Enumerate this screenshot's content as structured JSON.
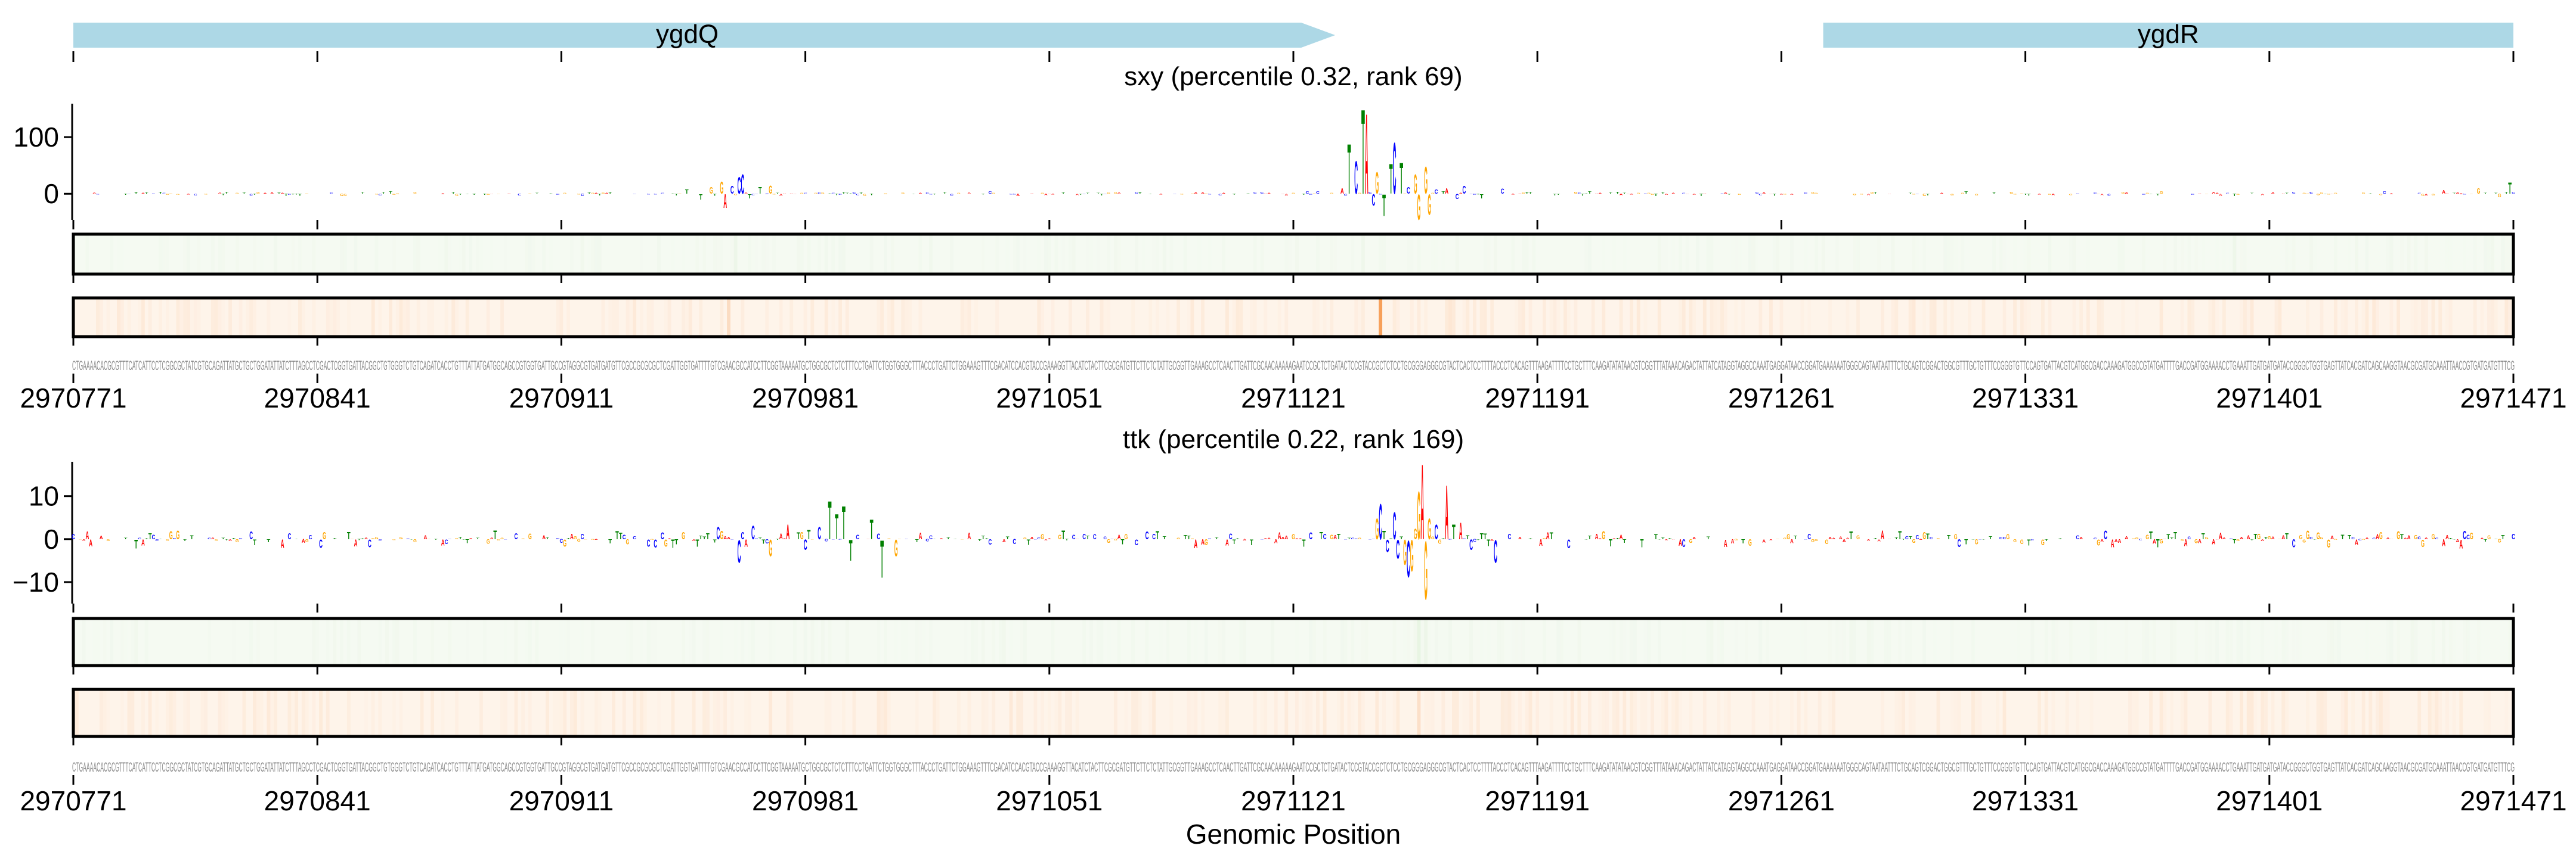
{
  "region": {
    "start": 2970771,
    "end": 2971471
  },
  "xticks": [
    "2970771",
    "2970841",
    "2970911",
    "2970981",
    "2971051",
    "2971121",
    "2971191",
    "2971261",
    "2971331",
    "2971401",
    "2971471"
  ],
  "xlabel": "Genomic Position",
  "genes": [
    {
      "name": "ygdQ",
      "start": 2970771,
      "end": 2971133,
      "strand": "+"
    },
    {
      "name": "ygdR",
      "start": 2971273,
      "end": 2971471,
      "strand": "+"
    }
  ],
  "sequence": "CTGAAAACACGCGTTTCATCATTCCTCGGCGCTATCGTGCAGATTATGCTGCTGGATATTATCTTTAGCCTCGACTCGGTGATTACGGCTGTGGGTCTGTCAGATCACCTGTTTATTATGATGGCAGCCGTGGTGATTGCCGTAGGCGTGATGATGTTCGCCGCGCGCTCGATTGGTGATTTTGTCGAACGCCATCCTTCGGTAAAAATGCTGGCGCTCTCTTTCCTGATTCTGGTGGGCTTTACCCTGATTCTGGAAAGTTTCGACATCCACGTACCGAAAGGTTACATCTACTTCGCGATGTTCTTCTCTATTGCGGTTGAAAGCCTCAACTTGATTCGCAACAAAAAGAATCCGCTCTGATACTCCGTACCGCTCTCCTGCGGGAGGGCGTACTCACTCCTTTTACCCTCACAGTTTAAGATTTTCCTGCTTTCAAGATATATAACGTCGGTTTATAAACAGACTATTATCATAGGTAGGCCAAATGAGGATAACCGGATGAAAAAATGGGCAGTAATAATTTCTGCAGTCGGACTGGCGTTTGCTGTTTCCGGGTGTTCCAGTGATTACGTCATGGCGACCAAAGATGGCCGTATGATTTTGACCGATGGAAAACCTGAAATTGATGATGATACCGGGCTGGTGAGTTATCACGATCAGCAAGGTAACGCGATGCAAATTAACCGTGATGATGTTTCG",
  "colors": {
    "gene": "#add8e6",
    "A": "#ff0000",
    "C": "#0000ff",
    "G": "#ffa500",
    "T": "#008000",
    "heat_green_bg": "#f5faf2",
    "heat_green_hi": "#d6edd0",
    "heat_orange_bg": "#fef4ea",
    "heat_orange_hi": "#f7a05a",
    "sequence": "#8a8a8a"
  },
  "chart_data": [
    {
      "type": "logo",
      "title": "sxy (percentile 0.32, rank 69)",
      "ylim": [
        -46,
        159
      ],
      "yticks": [
        {
          "value": 0,
          "label": "0"
        },
        {
          "value": 100,
          "label": "100"
        }
      ],
      "noise_amplitude": 4,
      "peaks_offset_value": [
        [
          176,
          8
        ],
        [
          180,
          -10
        ],
        [
          183,
          12
        ],
        [
          186,
          22
        ],
        [
          187,
          -25
        ],
        [
          189,
          14
        ],
        [
          191,
          30
        ],
        [
          192,
          35
        ],
        [
          194,
          -8
        ],
        [
          197,
          12
        ],
        [
          200,
          15
        ],
        [
          364,
          10
        ],
        [
          366,
          91
        ],
        [
          368,
          60
        ],
        [
          370,
          154
        ],
        [
          371,
          146
        ],
        [
          373,
          -21
        ],
        [
          374,
          39
        ],
        [
          376,
          -39
        ],
        [
          378,
          54
        ],
        [
          379,
          93
        ],
        [
          381,
          56
        ],
        [
          383,
          12
        ],
        [
          385,
          35
        ],
        [
          386,
          -46
        ],
        [
          388,
          49
        ],
        [
          389,
          -37
        ],
        [
          391,
          8
        ],
        [
          394,
          10
        ],
        [
          397,
          -9
        ],
        [
          399,
          14
        ],
        [
          404,
          -8
        ],
        [
          410,
          9
        ],
        [
          680,
          6
        ],
        [
          690,
          10
        ],
        [
          696,
          -6
        ],
        [
          699,
          20
        ]
      ],
      "green_highlights": [
        [
          190,
          0.25
        ],
        [
          370,
          0.2
        ],
        [
          620,
          0.15
        ]
      ],
      "orange_highlights": [
        [
          375,
          1.0
        ],
        [
          188,
          0.2
        ],
        [
          395,
          0.15
        ]
      ]
    },
    {
      "type": "logo",
      "title": "ttk (percentile 0.22, rank 169)",
      "ylim": [
        -15,
        18
      ],
      "yticks": [
        {
          "value": -10,
          "label": "−10"
        },
        {
          "value": 0,
          "label": "0"
        },
        {
          "value": 10,
          "label": "10"
        }
      ],
      "noise_amplitude": 2.2,
      "peaks_offset_value": [
        [
          185,
          3
        ],
        [
          191,
          -5.5
        ],
        [
          195,
          3.2
        ],
        [
          200,
          -4
        ],
        [
          205,
          3.5
        ],
        [
          210,
          -2.5
        ],
        [
          214,
          3
        ],
        [
          217,
          9.2
        ],
        [
          219,
          6
        ],
        [
          221,
          8
        ],
        [
          223,
          -5
        ],
        [
          229,
          4.7
        ],
        [
          232,
          -9
        ],
        [
          236,
          -4
        ],
        [
          374,
          5
        ],
        [
          375,
          8.5
        ],
        [
          377,
          -3
        ],
        [
          379,
          6.5
        ],
        [
          380,
          -4.5
        ],
        [
          382,
          -6
        ],
        [
          383,
          -8.8
        ],
        [
          384,
          -7.5
        ],
        [
          385,
          2.5
        ],
        [
          386,
          11.5
        ],
        [
          387,
          18
        ],
        [
          388,
          -14
        ],
        [
          389,
          5
        ],
        [
          391,
          3.5
        ],
        [
          394,
          13
        ],
        [
          396,
          3.5
        ],
        [
          398,
          4
        ],
        [
          401,
          -2.5
        ],
        [
          404,
          1.5
        ],
        [
          408,
          -5.5
        ]
      ],
      "green_highlights": [
        [
          386,
          0.4
        ],
        [
          388,
          0.25
        ]
      ],
      "orange_highlights": [
        [
          386,
          0.2
        ],
        [
          200,
          0.12
        ]
      ]
    }
  ]
}
